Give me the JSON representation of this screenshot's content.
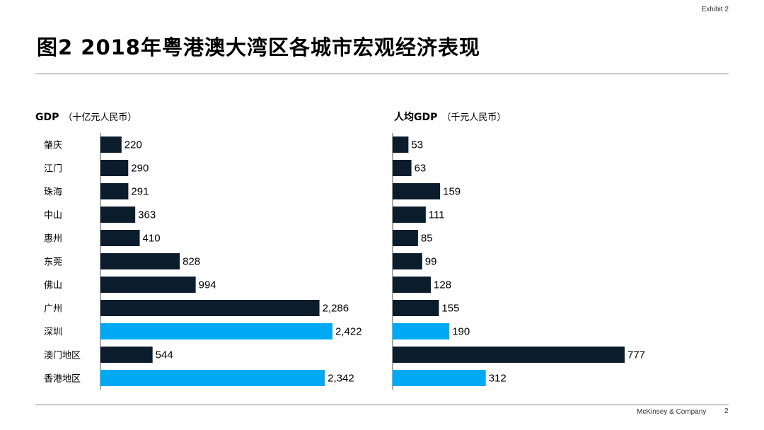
{
  "header": {
    "exhibit_label": "Exhibit 2",
    "title": "图2 2018年粤港澳大湾区各城市宏观经济表现"
  },
  "footer": {
    "company": "McKinsey & Company",
    "page_number": "2"
  },
  "colors": {
    "dark_bar": "#0b1c2c",
    "highlight_bar": "#00a9f4",
    "axis": "#555555"
  },
  "chart_data": [
    {
      "type": "bar",
      "orientation": "horizontal",
      "title": "GDP",
      "unit": "（十亿元人民币）",
      "categories": [
        "肇庆",
        "江门",
        "珠海",
        "中山",
        "惠州",
        "东莞",
        "佛山",
        "广州",
        "深圳",
        "澳门地区",
        "香港地区"
      ],
      "values": [
        220,
        290,
        291,
        363,
        410,
        828,
        994,
        2286,
        2422,
        544,
        2342
      ],
      "value_labels": [
        "220",
        "290",
        "291",
        "363",
        "410",
        "828",
        "994",
        "2,286",
        "2,422",
        "544",
        "2,342"
      ],
      "highlighted": [
        "深圳",
        "香港地区"
      ],
      "xlim": [
        0,
        2422
      ]
    },
    {
      "type": "bar",
      "orientation": "horizontal",
      "title": "人均GDP",
      "unit": "（千元人民币）",
      "categories": [
        "肇庆",
        "江门",
        "珠海",
        "中山",
        "惠州",
        "东莞",
        "佛山",
        "广州",
        "深圳",
        "澳门地区",
        "香港地区"
      ],
      "values": [
        53,
        63,
        159,
        111,
        85,
        99,
        128,
        155,
        190,
        777,
        312
      ],
      "value_labels": [
        "53",
        "63",
        "159",
        "111",
        "85",
        "99",
        "128",
        "155",
        "190",
        "777",
        "312"
      ],
      "highlighted": [
        "深圳",
        "香港地区"
      ],
      "xlim": [
        0,
        777
      ]
    }
  ]
}
